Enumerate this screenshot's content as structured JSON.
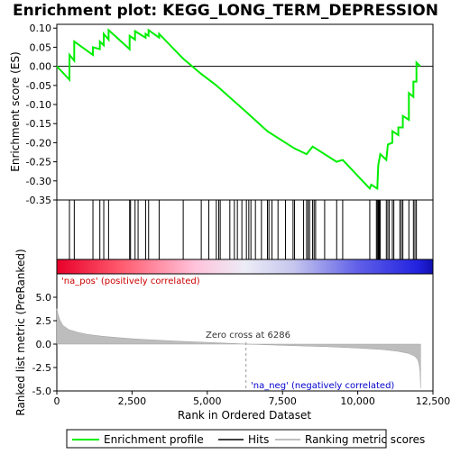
{
  "chart_data": {
    "type": "line",
    "title": "Enrichment plot: KEGG_LONG_TERM_DEPRESSION",
    "es_panel": {
      "ylabel": "Enrichment score (ES)",
      "ylim": [
        -0.35,
        0.11
      ],
      "yticks": [
        "0.10",
        "0.05",
        "0.00",
        "-0.05",
        "-0.10",
        "-0.15",
        "-0.20",
        "-0.25",
        "-0.30",
        "-0.35"
      ],
      "series_name": "Enrichment profile",
      "line_color": "#00ee00",
      "points": [
        [
          0,
          0.0
        ],
        [
          420,
          -0.035
        ],
        [
          420,
          0.03
        ],
        [
          580,
          0.015
        ],
        [
          580,
          0.065
        ],
        [
          1200,
          0.03
        ],
        [
          1200,
          0.05
        ],
        [
          1430,
          0.045
        ],
        [
          1430,
          0.065
        ],
        [
          1560,
          0.055
        ],
        [
          1560,
          0.085
        ],
        [
          1720,
          0.07
        ],
        [
          1720,
          0.095
        ],
        [
          2420,
          0.045
        ],
        [
          2420,
          0.08
        ],
        [
          2600,
          0.07
        ],
        [
          2600,
          0.092
        ],
        [
          2950,
          0.075
        ],
        [
          2950,
          0.085
        ],
        [
          3050,
          0.08
        ],
        [
          3050,
          0.095
        ],
        [
          3400,
          0.075
        ],
        [
          3400,
          0.085
        ],
        [
          4200,
          0.02
        ],
        [
          4800,
          -0.02
        ],
        [
          5300,
          -0.05
        ],
        [
          6300,
          -0.12
        ],
        [
          7000,
          -0.17
        ],
        [
          7900,
          -0.215
        ],
        [
          8300,
          -0.23
        ],
        [
          8500,
          -0.21
        ],
        [
          9300,
          -0.25
        ],
        [
          9500,
          -0.245
        ],
        [
          10400,
          -0.32
        ],
        [
          10450,
          -0.31
        ],
        [
          10650,
          -0.32
        ],
        [
          10680,
          -0.26
        ],
        [
          10750,
          -0.23
        ],
        [
          10950,
          -0.245
        ],
        [
          11000,
          -0.205
        ],
        [
          11150,
          -0.2
        ],
        [
          11150,
          -0.17
        ],
        [
          11350,
          -0.18
        ],
        [
          11350,
          -0.16
        ],
        [
          11500,
          -0.16
        ],
        [
          11500,
          -0.13
        ],
        [
          11700,
          -0.14
        ],
        [
          11700,
          -0.07
        ],
        [
          11850,
          -0.08
        ],
        [
          11850,
          -0.04
        ],
        [
          11950,
          -0.04
        ],
        [
          11950,
          0.01
        ],
        [
          12080,
          0.0
        ]
      ]
    },
    "hits": [
      420,
      580,
      1200,
      1430,
      1560,
      1720,
      2420,
      2450,
      2600,
      2700,
      2950,
      3050,
      3400,
      4200,
      4800,
      5050,
      5300,
      5380,
      5430,
      5750,
      5900,
      6000,
      6150,
      6300,
      6380,
      6450,
      6600,
      6800,
      7000,
      7050,
      7150,
      7350,
      7600,
      7850,
      7900,
      8200,
      8300,
      8350,
      8400,
      8500,
      8550,
      8600,
      8900,
      9300,
      9500,
      10400,
      10620,
      10650,
      10680,
      10700,
      10720,
      10750,
      10950,
      11000,
      11050,
      11150,
      11200,
      11400,
      11450,
      11500,
      11700,
      11850,
      11900,
      11950
    ],
    "rank_panel": {
      "ylabel": "Ranked list metric (PreRanked)",
      "ylim": [
        -5.0,
        7.5
      ],
      "yticks": [
        "5.0",
        "2.5",
        "0.0",
        "-2.5",
        "-5.0"
      ],
      "curve": [
        [
          0,
          3.8
        ],
        [
          40,
          3.2
        ],
        [
          100,
          2.6
        ],
        [
          200,
          2.0
        ],
        [
          400,
          1.55
        ],
        [
          700,
          1.25
        ],
        [
          1000,
          1.05
        ],
        [
          1500,
          0.85
        ],
        [
          2000,
          0.7
        ],
        [
          2500,
          0.58
        ],
        [
          3000,
          0.48
        ],
        [
          4000,
          0.32
        ],
        [
          5000,
          0.18
        ],
        [
          6000,
          0.05
        ],
        [
          6286,
          0.0
        ],
        [
          7000,
          -0.08
        ],
        [
          8000,
          -0.18
        ],
        [
          9000,
          -0.28
        ],
        [
          10000,
          -0.42
        ],
        [
          10800,
          -0.58
        ],
        [
          11300,
          -0.75
        ],
        [
          11700,
          -1.0
        ],
        [
          11900,
          -1.3
        ],
        [
          12000,
          -1.7
        ],
        [
          12040,
          -2.2
        ],
        [
          12070,
          -3.0
        ],
        [
          12090,
          -4.7
        ]
      ],
      "zero_cross_label": "Zero cross at 6286",
      "zero_cross": 6286,
      "pos_label": "'na_pos' (positively correlated)",
      "neg_label": "'na_neg' (negatively correlated)"
    },
    "xlabel": "Rank in Ordered Dataset",
    "xlim": [
      0,
      12500
    ],
    "xticks": [
      "0",
      "2,500",
      "5,000",
      "7,500",
      "10,000",
      "12,500"
    ],
    "n_genes": 12092,
    "legend": {
      "placement": "bottom",
      "entries": [
        "Enrichment profile",
        "Hits",
        "Ranking metric scores"
      ]
    },
    "colors": {
      "profile": "#00ee00",
      "positive": "#ff0000",
      "negative": "#0000ff",
      "pos_label": "#cc0000",
      "neg_label": "#0000cc",
      "zero_line": "#999999",
      "rank_fill": "#bdbdbd"
    }
  }
}
